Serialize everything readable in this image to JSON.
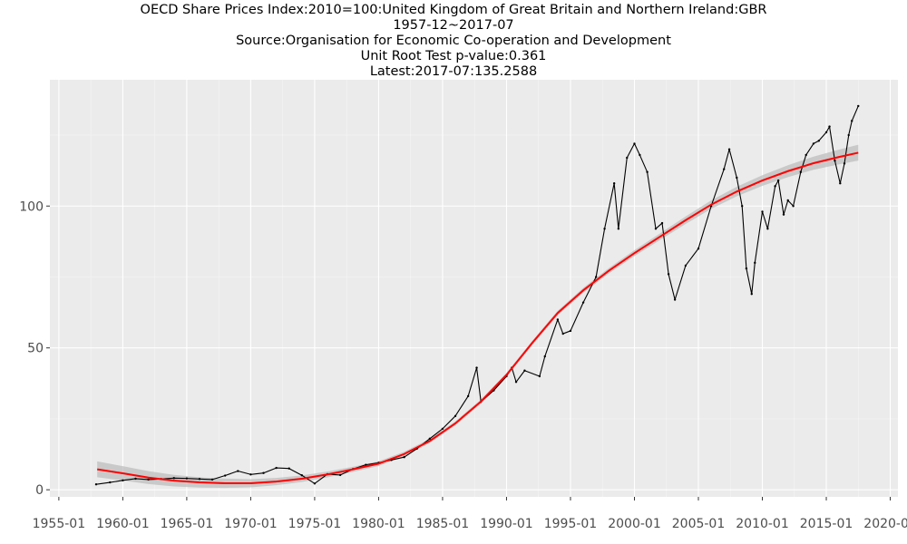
{
  "title_lines": [
    "OECD Share Prices Index:2010=100:United Kingdom of Great Britain and Northern Ireland:GBR",
    "1957-12~2017-07",
    "Source:Organisation for Economic Co-operation and Development",
    "Unit Root Test p-value:0.361",
    "Latest:2017-07:135.2588"
  ],
  "chart_data": {
    "type": "line",
    "title": "OECD Share Prices Index:2010=100:United Kingdom of Great Britain and Northern Ireland:GBR",
    "subtitle": "1957-12~2017-07 | Source:Organisation for Economic Co-operation and Development | Unit Root Test p-value:0.361 | Latest:2017-07:135.2588",
    "xlabel": "",
    "ylabel": "",
    "x_axis": {
      "min": 1954.3,
      "max": 2020.6,
      "ticks": [
        1955,
        1960,
        1965,
        1970,
        1975,
        1980,
        1985,
        1990,
        1995,
        2000,
        2005,
        2010,
        2015,
        2020
      ],
      "tick_labels": [
        "1955-01",
        "1960-01",
        "1965-01",
        "1970-01",
        "1975-01",
        "1980-01",
        "1985-01",
        "1990-01",
        "1995-01",
        "2000-01",
        "2005-01",
        "2010-01",
        "2015-01",
        "2020-01"
      ]
    },
    "y_axis": {
      "min": -2.5,
      "max": 144.5,
      "ticks": [
        0,
        50,
        100
      ],
      "tick_labels": [
        "0",
        "50",
        "100"
      ]
    },
    "grid": true,
    "colors": {
      "panel_background": "#ebebeb",
      "grid_major": "#ffffff",
      "series": "#000000",
      "smooth": "#ff0000",
      "band": "#bdbdbd"
    },
    "series": [
      {
        "kind": "observed",
        "points": [
          [
            "1957-12",
            1.9
          ],
          [
            "1959-01",
            2.6
          ],
          [
            "1960-01",
            3.3
          ],
          [
            "1961-01",
            3.9
          ],
          [
            "1962-01",
            3.6
          ],
          [
            "1963-01",
            3.8
          ],
          [
            "1964-01",
            4.1
          ],
          [
            "1965-01",
            4.0
          ],
          [
            "1966-01",
            3.8
          ],
          [
            "1967-01",
            3.6
          ],
          [
            "1968-01",
            5.0
          ],
          [
            "1969-01",
            6.6
          ],
          [
            "1970-01",
            5.4
          ],
          [
            "1971-01",
            5.9
          ],
          [
            "1972-01",
            7.7
          ],
          [
            "1973-01",
            7.5
          ],
          [
            "1974-01",
            5.1
          ],
          [
            "1975-01",
            2.2
          ],
          [
            "1976-01",
            5.5
          ],
          [
            "1977-01",
            5.2
          ],
          [
            "1978-01",
            7.3
          ],
          [
            "1979-01",
            8.8
          ],
          [
            "1980-01",
            9.5
          ],
          [
            "1981-01",
            10.5
          ],
          [
            "1982-01",
            11.5
          ],
          [
            "1983-01",
            14.5
          ],
          [
            "1984-01",
            18.0
          ],
          [
            "1985-01",
            21.5
          ],
          [
            "1986-01",
            26.0
          ],
          [
            "1987-01",
            33.0
          ],
          [
            "1987-09",
            43.0
          ],
          [
            "1988-01",
            31.0
          ],
          [
            "1989-01",
            35.0
          ],
          [
            "1990-01",
            40.0
          ],
          [
            "1990-06",
            43.0
          ],
          [
            "1990-10",
            38.0
          ],
          [
            "1991-06",
            42.0
          ],
          [
            "1992-08",
            40.0
          ],
          [
            "1993-01",
            47.0
          ],
          [
            "1994-01",
            60.0
          ],
          [
            "1994-06",
            55.0
          ],
          [
            "1995-01",
            56.0
          ],
          [
            "1996-01",
            66.0
          ],
          [
            "1997-01",
            75.0
          ],
          [
            "1997-09",
            92.0
          ],
          [
            "1998-06",
            108.0
          ],
          [
            "1998-10",
            92.0
          ],
          [
            "1999-06",
            117.0
          ],
          [
            "2000-01",
            122.0
          ],
          [
            "2000-06",
            118.0
          ],
          [
            "2001-01",
            112.0
          ],
          [
            "2001-09",
            92.0
          ],
          [
            "2002-03",
            94.0
          ],
          [
            "2002-09",
            76.0
          ],
          [
            "2003-03",
            67.0
          ],
          [
            "2004-01",
            79.0
          ],
          [
            "2005-01",
            85.0
          ],
          [
            "2006-01",
            100.0
          ],
          [
            "2007-01",
            113.0
          ],
          [
            "2007-06",
            120.0
          ],
          [
            "2008-01",
            110.0
          ],
          [
            "2008-06",
            100.0
          ],
          [
            "2008-10",
            78.0
          ],
          [
            "2009-03",
            69.0
          ],
          [
            "2009-06",
            80.0
          ],
          [
            "2010-01",
            98.0
          ],
          [
            "2010-06",
            92.0
          ],
          [
            "2011-01",
            107.0
          ],
          [
            "2011-04",
            109.0
          ],
          [
            "2011-09",
            97.0
          ],
          [
            "2012-01",
            102.0
          ],
          [
            "2012-06",
            100.0
          ],
          [
            "2013-01",
            112.0
          ],
          [
            "2013-06",
            118.0
          ],
          [
            "2014-01",
            122.0
          ],
          [
            "2014-06",
            123.0
          ],
          [
            "2015-01",
            126.0
          ],
          [
            "2015-04",
            128.0
          ],
          [
            "2015-09",
            116.0
          ],
          [
            "2016-02",
            108.0
          ],
          [
            "2016-06",
            115.0
          ],
          [
            "2016-10",
            125.0
          ],
          [
            "2017-01",
            130.0
          ],
          [
            "2017-07",
            135.2588
          ]
        ]
      },
      {
        "kind": "smooth",
        "points": [
          [
            1958.0,
            7.2
          ],
          [
            1960.0,
            5.8
          ],
          [
            1962.0,
            4.3
          ],
          [
            1964.0,
            3.2
          ],
          [
            1966.0,
            2.6
          ],
          [
            1968.0,
            2.3
          ],
          [
            1970.0,
            2.3
          ],
          [
            1972.0,
            2.9
          ],
          [
            1974.0,
            3.9
          ],
          [
            1976.0,
            5.4
          ],
          [
            1978.0,
            7.2
          ],
          [
            1980.0,
            9.2
          ],
          [
            1982.0,
            12.6
          ],
          [
            1984.0,
            17.2
          ],
          [
            1986.0,
            23.4
          ],
          [
            1988.0,
            31.1
          ],
          [
            1990.0,
            40.5
          ],
          [
            1992.0,
            51.7
          ],
          [
            1994.0,
            62.3
          ],
          [
            1996.0,
            70.3
          ],
          [
            1998.0,
            77.2
          ],
          [
            2000.0,
            83.4
          ],
          [
            2002.0,
            89.2
          ],
          [
            2004.0,
            95.0
          ],
          [
            2006.0,
            100.5
          ],
          [
            2008.0,
            105.1
          ],
          [
            2010.0,
            109.0
          ],
          [
            2012.0,
            112.3
          ],
          [
            2014.0,
            115.1
          ],
          [
            2016.0,
            117.3
          ],
          [
            2017.5,
            118.8
          ]
        ]
      }
    ]
  }
}
